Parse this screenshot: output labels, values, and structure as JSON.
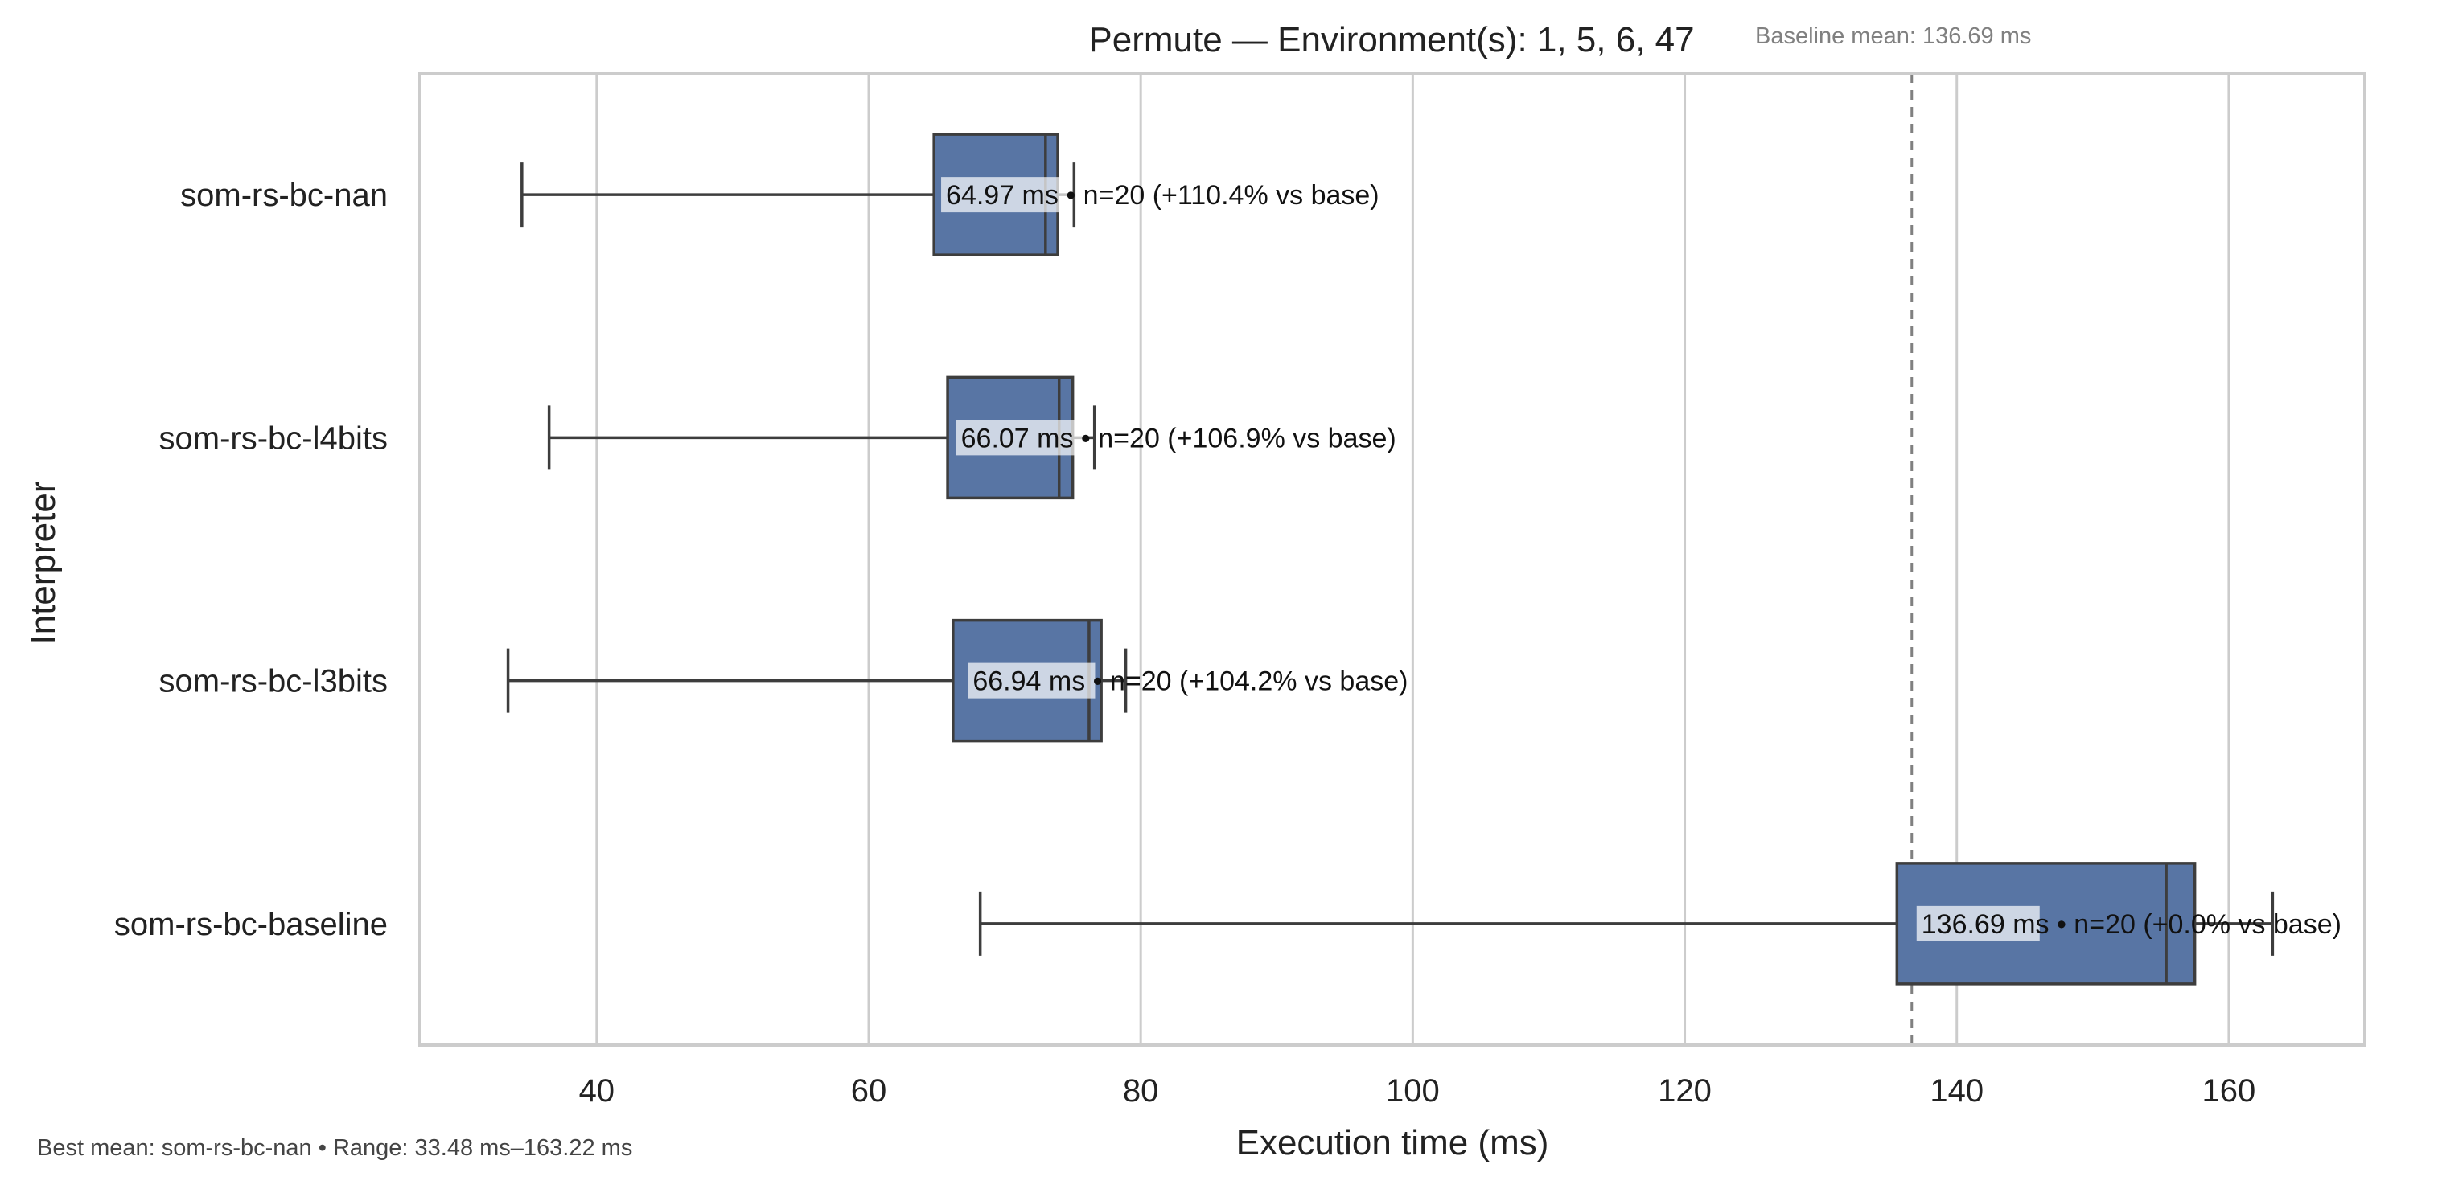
{
  "chart_data": {
    "type": "boxplot",
    "orientation": "horizontal",
    "title": "Permute — Environment(s): 1, 5, 6, 47",
    "baseline_note": "Baseline mean: 136.69 ms",
    "xlabel": "Execution time (ms)",
    "ylabel": "Interpreter",
    "xlim": [
      27,
      170
    ],
    "xticks": [
      40,
      60,
      80,
      100,
      120,
      140,
      160
    ],
    "grid": "vertical",
    "baseline_mean": 136.69,
    "footer": "Best mean: som-rs-bc-nan • Range: 33.48 ms–163.22 ms",
    "box_color": "#5875a4",
    "series": [
      {
        "name": "som-rs-bc-nan",
        "whisker_low": 34.5,
        "q1": 64.8,
        "median": 73.0,
        "q3": 73.9,
        "whisker_high": 75.1,
        "mean": 64.97,
        "label": "64.97 ms • n=20 (+110.4% vs base)"
      },
      {
        "name": "som-rs-bc-l4bits",
        "whisker_low": 36.5,
        "q1": 65.8,
        "median": 74.0,
        "q3": 75.0,
        "whisker_high": 76.6,
        "mean": 66.07,
        "label": "66.07 ms • n=20 (+106.9% vs base)"
      },
      {
        "name": "som-rs-bc-l3bits",
        "whisker_low": 33.48,
        "q1": 66.2,
        "median": 76.2,
        "q3": 77.1,
        "whisker_high": 78.9,
        "mean": 66.94,
        "label": "66.94 ms • n=20 (+104.2% vs base)"
      },
      {
        "name": "som-rs-bc-baseline",
        "whisker_low": 68.2,
        "q1": 135.6,
        "median": 155.4,
        "q3": 157.5,
        "whisker_high": 163.22,
        "mean": 136.69,
        "label": "136.69 ms • n=20 (+0.0% vs base)"
      }
    ]
  }
}
